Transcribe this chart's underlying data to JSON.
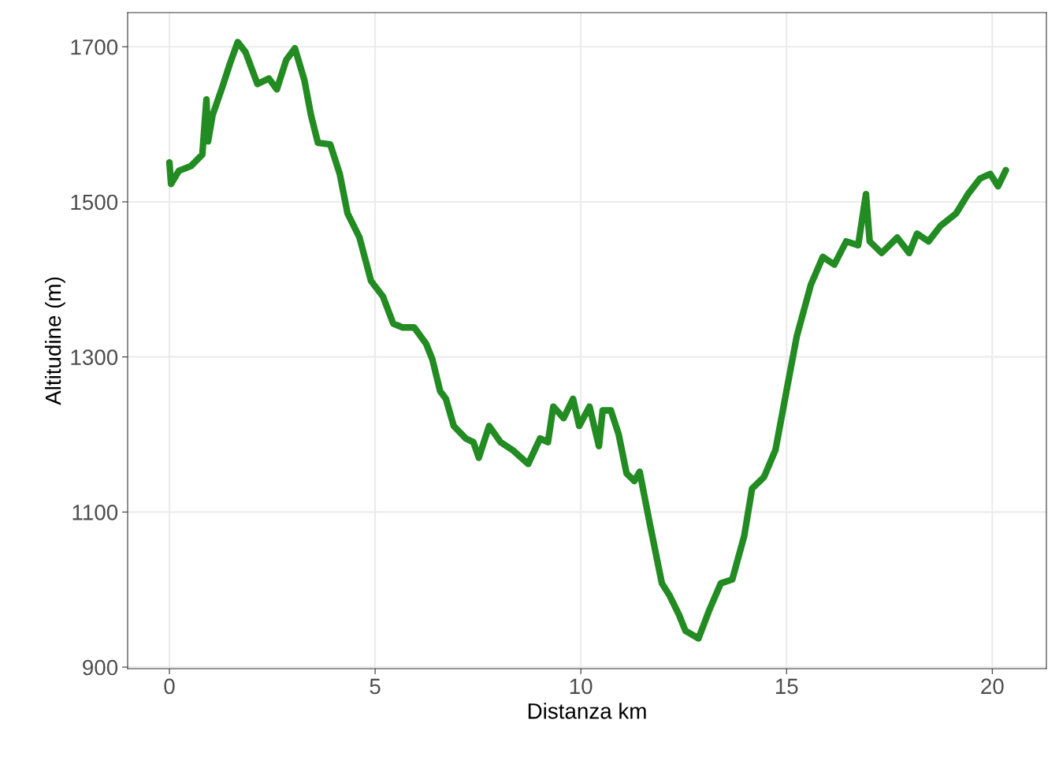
{
  "chart_data": {
    "type": "line",
    "xlabel": "Distanza km",
    "ylabel": "Altitudine (m)",
    "xlim": [
      -1.015,
      21.315
    ],
    "ylim": [
      898,
      1744
    ],
    "xticks": [
      0,
      5,
      10,
      15,
      20
    ],
    "yticks": [
      900,
      1100,
      1300,
      1500,
      1700
    ],
    "grid": true,
    "marker": "none",
    "line_style": "solid",
    "series": [
      {
        "color": "#228b22",
        "x": [
          0,
          0.04,
          0.23,
          0.52,
          0.8,
          0.9,
          0.94,
          1.05,
          1.28,
          1.47,
          1.66,
          1.85,
          2.14,
          2.42,
          2.61,
          2.84,
          3.05,
          3.28,
          3.44,
          3.61,
          3.91,
          4.14,
          4.33,
          4.62,
          4.9,
          5.19,
          5.44,
          5.67,
          5.95,
          6.24,
          6.39,
          6.58,
          6.72,
          6.91,
          7.2,
          7.39,
          7.52,
          7.77,
          8.05,
          8.34,
          8.72,
          9.01,
          9.2,
          9.33,
          9.58,
          9.81,
          9.96,
          10.21,
          10.44,
          10.53,
          10.73,
          10.92,
          11.11,
          11.3,
          11.43,
          11.68,
          11.97,
          12.16,
          12.39,
          12.54,
          12.86,
          13.11,
          13.4,
          13.68,
          13.97,
          14.16,
          14.45,
          14.73,
          14.98,
          15.25,
          15.59,
          15.88,
          16.16,
          16.45,
          16.74,
          16.93,
          17.02,
          17.31,
          17.69,
          17.98,
          18.17,
          18.45,
          18.74,
          19.12,
          19.41,
          19.7,
          19.95,
          20.14,
          20.33
        ],
        "values": [
          1551,
          1523,
          1540,
          1546,
          1561,
          1632,
          1578,
          1612,
          1647,
          1678,
          1706,
          1693,
          1652,
          1659,
          1645,
          1683,
          1698,
          1657,
          1612,
          1576,
          1574,
          1536,
          1485,
          1454,
          1398,
          1378,
          1343,
          1338,
          1338,
          1317,
          1297,
          1256,
          1246,
          1211,
          1195,
          1190,
          1170,
          1211,
          1190,
          1180,
          1162,
          1195,
          1190,
          1236,
          1221,
          1246,
          1211,
          1236,
          1185,
          1231,
          1231,
          1200,
          1150,
          1140,
          1152,
          1084,
          1008,
          992,
          967,
          947,
          937,
          972,
          1008,
          1013,
          1069,
          1130,
          1145,
          1180,
          1251,
          1327,
          1393,
          1429,
          1419,
          1449,
          1444,
          1510,
          1449,
          1434,
          1454,
          1434,
          1459,
          1449,
          1469,
          1485,
          1510,
          1530,
          1536,
          1520,
          1541
        ]
      }
    ]
  }
}
